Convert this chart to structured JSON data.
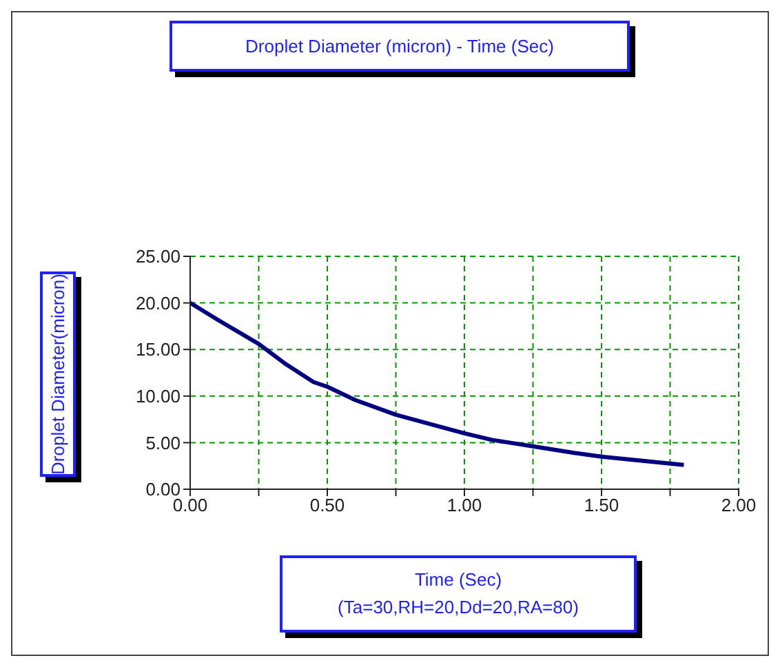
{
  "chart_data": {
    "type": "line",
    "title": "Droplet Diameter (micron) - Time (Sec)",
    "xlabel": "Time (Sec)",
    "ylabel": "Droplet Diameter(micron)",
    "annotations": [
      "(Ta=30,RH=20,Dd=20,RA=80)"
    ],
    "x": [
      0,
      0.1,
      0.25,
      0.35,
      0.45,
      0.5,
      0.6,
      0.75,
      0.9,
      1.0,
      1.1,
      1.25,
      1.4,
      1.5,
      1.6,
      1.8
    ],
    "series": [
      {
        "color": "#000080",
        "values": [
          20,
          18.2,
          15.6,
          13.4,
          11.5,
          11,
          9.6,
          8,
          6.8,
          6,
          5.3,
          4.6,
          3.9,
          3.5,
          3.2,
          2.6
        ]
      }
    ],
    "xlim": [
      0,
      2
    ],
    "xticks": [
      {
        "value": 0,
        "label": "0.00"
      },
      {
        "value": 0.25,
        "label": null
      },
      {
        "value": 0.5,
        "label": "0.50"
      },
      {
        "value": 0.75,
        "label": null
      },
      {
        "value": 1,
        "label": "1.00"
      },
      {
        "value": 1.25,
        "label": null
      },
      {
        "value": 1.5,
        "label": "1.50"
      },
      {
        "value": 1.75,
        "label": null
      },
      {
        "value": 2,
        "label": "2.00"
      }
    ],
    "ylim": [
      0,
      25
    ],
    "yticks": [
      {
        "value": 0,
        "label": "0.00"
      },
      {
        "value": 5,
        "label": "5.00"
      },
      {
        "value": 10,
        "label": "10.00"
      },
      {
        "value": 15,
        "label": "15.00"
      },
      {
        "value": 20,
        "label": "20.00"
      },
      {
        "value": 25,
        "label": "25.00"
      }
    ],
    "grid": true,
    "marker": "none",
    "line_style": "solid"
  }
}
